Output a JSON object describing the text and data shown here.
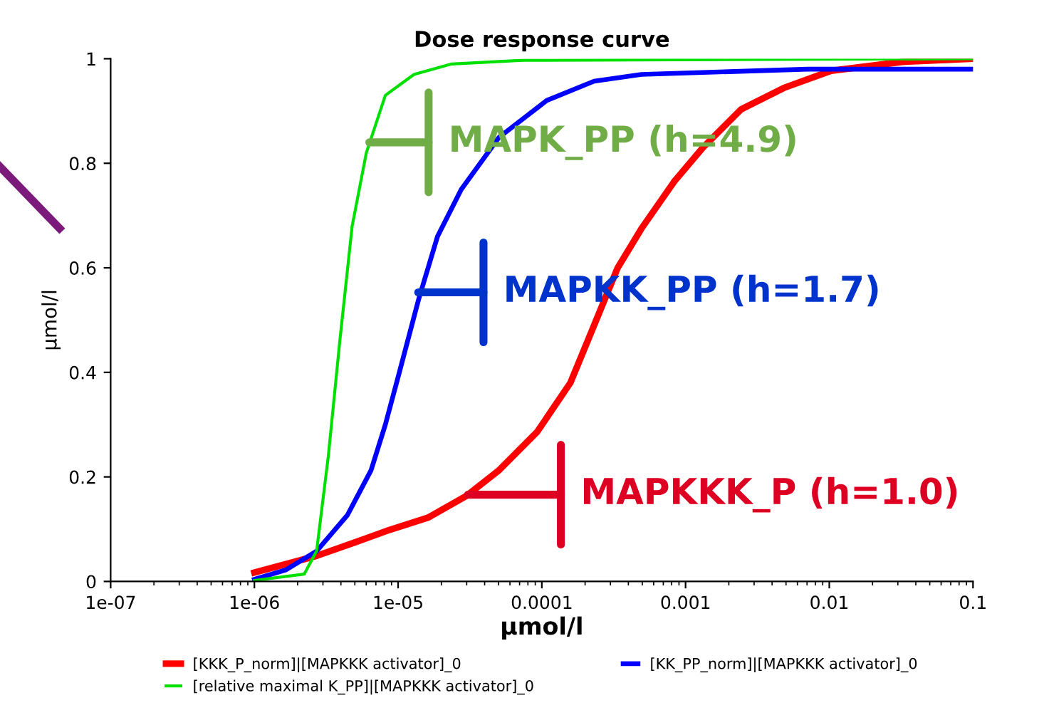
{
  "chart_data": {
    "type": "line",
    "title": "Dose response curve",
    "xlabel": "µmol/l",
    "ylabel": "µmol/l",
    "log": "x",
    "xlim": [
      1e-07,
      0.1
    ],
    "ylim": [
      0,
      1
    ],
    "xticks": [
      {
        "value": 1e-07,
        "label": "1e-07"
      },
      {
        "value": 1e-06,
        "label": "1e-06"
      },
      {
        "value": 1e-05,
        "label": "1e-05"
      },
      {
        "value": 0.0001,
        "label": "0.0001"
      },
      {
        "value": 0.001,
        "label": "0.001"
      },
      {
        "value": 0.01,
        "label": "0.01"
      },
      {
        "value": 0.1,
        "label": "0.1"
      }
    ],
    "yticks": [
      0,
      0.2,
      0.4,
      0.6,
      0.8,
      1
    ],
    "grid": false,
    "legend": "bottom",
    "marker": "none",
    "line_style": "solid",
    "series": [
      {
        "name": "[KKK_P_norm]|[MAPKKK activator]_0",
        "color": "#ff0000",
        "x": [
          1e-06,
          2.71e-06,
          5.16e-06,
          8.79e-06,
          1.61e-05,
          2.96e-05,
          5.05e-05,
          9.27e-05,
          0.000158,
          0.000231,
          0.000337,
          0.000493,
          0.000839,
          0.00132,
          0.00243,
          0.00482,
          0.0103,
          0.0322,
          0.1
        ],
        "values": [
          0.017,
          0.049,
          0.076,
          0.099,
          0.122,
          0.163,
          0.213,
          0.286,
          0.38,
          0.49,
          0.6,
          0.675,
          0.766,
          0.83,
          0.903,
          0.944,
          0.977,
          0.994,
          1.0
        ]
      },
      {
        "name": "[KK_PP_norm]|[MAPKKK activator]_0",
        "color": "#0000ff",
        "x": [
          1e-06,
          1.65e-06,
          2.71e-06,
          4.44e-06,
          6.49e-06,
          8.15e-06,
          1.02e-05,
          1.39e-05,
          1.88e-05,
          2.75e-05,
          5.05e-05,
          0.000108,
          0.000231,
          0.000493,
          0.00705,
          0.1
        ],
        "values": [
          0.004,
          0.022,
          0.058,
          0.127,
          0.213,
          0.3,
          0.4,
          0.54,
          0.66,
          0.75,
          0.85,
          0.92,
          0.957,
          0.97,
          0.98,
          0.98
        ]
      },
      {
        "name": "[relative maximal K_PP]|[MAPKKK activator]_0",
        "color": "#00e000",
        "x": [
          1e-06,
          2.22e-06,
          2.71e-06,
          3.27e-06,
          3.93e-06,
          4.79e-06,
          6.01e-06,
          8.15e-06,
          1.29e-05,
          2.36e-05,
          7.38e-05,
          0.1
        ],
        "values": [
          0.002,
          0.014,
          0.058,
          0.24,
          0.46,
          0.68,
          0.82,
          0.93,
          0.97,
          0.99,
          0.997,
          1.0
        ]
      }
    ],
    "annotations": [
      {
        "text": "MAPK_PP (h=4.9)",
        "x": 6.3e-06,
        "y": 0.84
      },
      {
        "text": "MAPKK_PP (h=1.7)",
        "x": 1.38e-05,
        "y": 0.553
      },
      {
        "text": "MAPKKK_P (h=1.0)",
        "x": 3.06e-05,
        "y": 0.166
      }
    ]
  }
}
